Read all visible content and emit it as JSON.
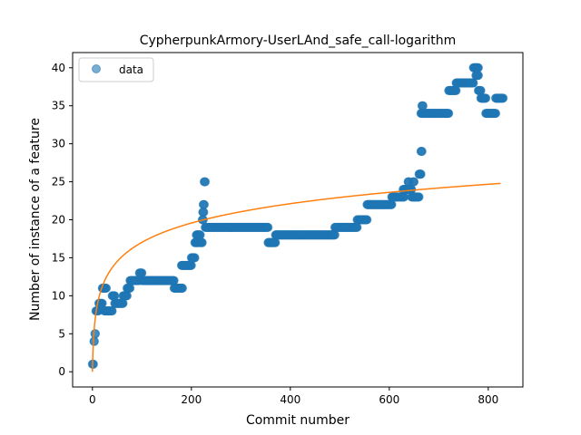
{
  "chart_data": {
    "type": "scatter",
    "title": "CypherpunkArmory-UserLAnd_safe_call-logarithm",
    "xlabel": "Commit number",
    "ylabel": "Number of instance of a feature",
    "xlim": [
      -40,
      870
    ],
    "ylim": [
      -2,
      42
    ],
    "xticks": [
      0,
      200,
      400,
      600,
      800
    ],
    "yticks": [
      0,
      5,
      10,
      15,
      20,
      25,
      30,
      35,
      40
    ],
    "grid": false,
    "legend_position": "top-left",
    "series": [
      {
        "name": "data",
        "kind": "scatter",
        "color": "#1f77b4",
        "segments": [
          [
            0,
            2,
            1
          ],
          [
            3,
            4,
            4
          ],
          [
            5,
            6,
            5
          ],
          [
            7,
            12,
            8
          ],
          [
            13,
            20,
            9
          ],
          [
            20,
            28,
            11
          ],
          [
            24,
            40,
            8
          ],
          [
            40,
            45,
            10
          ],
          [
            45,
            62,
            9
          ],
          [
            62,
            70,
            10
          ],
          [
            70,
            76,
            11
          ],
          [
            76,
            95,
            12
          ],
          [
            95,
            100,
            13
          ],
          [
            100,
            165,
            12
          ],
          [
            165,
            182,
            11
          ],
          [
            180,
            200,
            14
          ],
          [
            200,
            207,
            15
          ],
          [
            207,
            214,
            17
          ],
          [
            210,
            218,
            18
          ],
          [
            218,
            222,
            17
          ],
          [
            222,
            224,
            20
          ],
          [
            223,
            225,
            21
          ],
          [
            224,
            226,
            22
          ],
          [
            226,
            228,
            25
          ],
          [
            228,
            355,
            19
          ],
          [
            355,
            370,
            17
          ],
          [
            370,
            372,
            18
          ],
          [
            372,
            490,
            18
          ],
          [
            490,
            535,
            19
          ],
          [
            535,
            555,
            20
          ],
          [
            555,
            605,
            22
          ],
          [
            605,
            630,
            23
          ],
          [
            628,
            645,
            24
          ],
          [
            638,
            640,
            25
          ],
          [
            648,
            650,
            25
          ],
          [
            645,
            660,
            23
          ],
          [
            660,
            664,
            26
          ],
          [
            664,
            666,
            29
          ],
          [
            666,
            668,
            35
          ],
          [
            664,
            720,
            34
          ],
          [
            720,
            735,
            37
          ],
          [
            735,
            770,
            38
          ],
          [
            770,
            780,
            40
          ],
          [
            775,
            780,
            39
          ],
          [
            780,
            785,
            37
          ],
          [
            785,
            795,
            36
          ],
          [
            795,
            815,
            34
          ],
          [
            815,
            830,
            36
          ]
        ]
      },
      {
        "name": "",
        "kind": "line",
        "color": "#ff7f0e",
        "model": "logarithmic",
        "x_range": [
          0,
          825
        ],
        "coeff_a": 3.69,
        "offset_b": 0
      }
    ]
  }
}
